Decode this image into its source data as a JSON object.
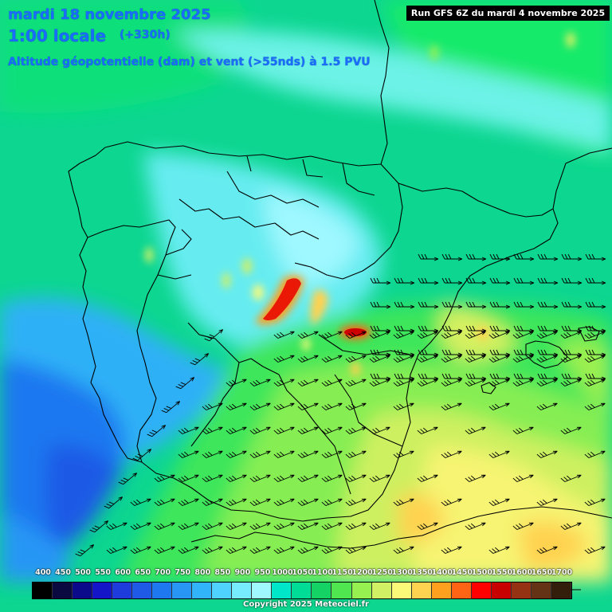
{
  "header": {
    "date": "mardi 18 novembre 2025",
    "local_time": "1:00 locale",
    "offset": "(+330h)",
    "parameter": "Altitude géopotentielle (dam) et vent (>55nds) à 1.5 PVU"
  },
  "run_banner": "Run GFS 6Z du mardi 4 novembre 2025",
  "legend": {
    "labels": [
      "400",
      "450",
      "500",
      "550",
      "600",
      "650",
      "700",
      "750",
      "800",
      "850",
      "900",
      "950",
      "1000",
      "1050",
      "1100",
      "1150",
      "1200",
      "1250",
      "1300",
      "1350",
      "1400",
      "1450",
      "1500",
      "1550",
      "1600",
      "1650",
      "1700"
    ],
    "colors": [
      "#000000",
      "#0a0a40",
      "#0a0a8a",
      "#1414c8",
      "#1e3cdc",
      "#1e5ae6",
      "#1e78f0",
      "#2896f5",
      "#32b4fa",
      "#50d2ff",
      "#78ecff",
      "#a0f8ff",
      "#00e6c8",
      "#00dc96",
      "#14d264",
      "#50e650",
      "#96f050",
      "#d2f064",
      "#fafa78",
      "#ffd250",
      "#ffa01e",
      "#ff6414",
      "#ff0000",
      "#c80000",
      "#963214",
      "#643214",
      "#321e0a"
    ]
  },
  "copyright": "Copyright 2025 Meteociel.fr"
}
